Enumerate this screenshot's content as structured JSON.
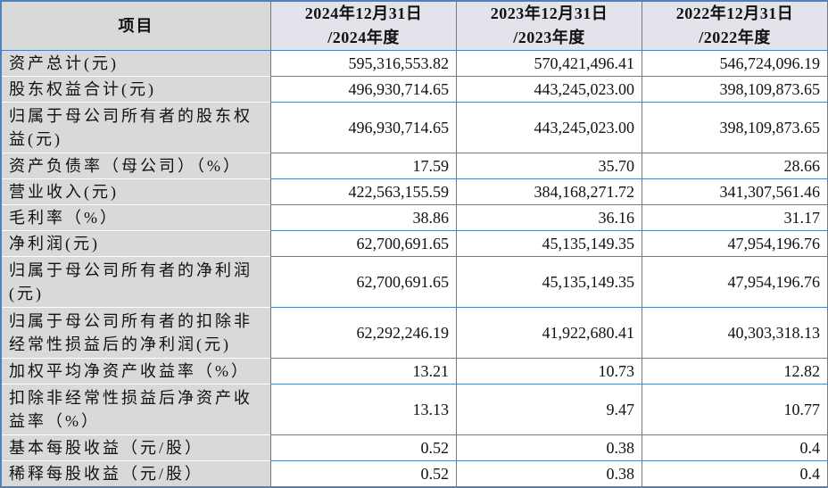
{
  "table": {
    "item_header": "项目",
    "period_headers": [
      {
        "line1": "2024年12月31日",
        "line2": "/2024年度"
      },
      {
        "line1": "2023年12月31日",
        "line2": "/2023年度"
      },
      {
        "line1": "2022年12月31日",
        "line2": "/2022年度"
      }
    ],
    "rows": [
      {
        "item": "资产总计(元)",
        "values": [
          "595,316,553.82",
          "570,421,496.41",
          "546,724,096.19"
        ]
      },
      {
        "item": "股东权益合计(元)",
        "values": [
          "496,930,714.65",
          "443,245,023.00",
          "398,109,873.65"
        ]
      },
      {
        "item": "归属于母公司所有者的股东权益(元)",
        "values": [
          "496,930,714.65",
          "443,245,023.00",
          "398,109,873.65"
        ]
      },
      {
        "item": "资产负债率（母公司）（%）",
        "values": [
          "17.59",
          "35.70",
          "28.66"
        ]
      },
      {
        "item": "营业收入(元)",
        "values": [
          "422,563,155.59",
          "384,168,271.72",
          "341,307,561.46"
        ]
      },
      {
        "item": "毛利率（%）",
        "values": [
          "38.86",
          "36.16",
          "31.17"
        ]
      },
      {
        "item": "净利润(元)",
        "values": [
          "62,700,691.65",
          "45,135,149.35",
          "47,954,196.76"
        ]
      },
      {
        "item": "归属于母公司所有者的净利润(元)",
        "values": [
          "62,700,691.65",
          "45,135,149.35",
          "47,954,196.76"
        ]
      },
      {
        "item": "归属于母公司所有者的扣除非经常性损益后的净利润(元)",
        "values": [
          "62,292,246.19",
          "41,922,680.41",
          "40,303,318.13"
        ]
      },
      {
        "item": "加权平均净资产收益率（%）",
        "values": [
          "13.21",
          "10.73",
          "12.82"
        ]
      },
      {
        "item": "扣除非经常性损益后净资产收益率（%）",
        "values": [
          "13.13",
          "9.47",
          "10.77"
        ]
      },
      {
        "item": "基本每股收益（元/股）",
        "values": [
          "0.52",
          "0.38",
          "0.4"
        ]
      },
      {
        "item": "稀释每股收益（元/股）",
        "values": [
          "0.52",
          "0.38",
          "0.4"
        ]
      }
    ]
  },
  "colors": {
    "border_blue": "#4f81bd",
    "label_column_bg": "#d9d9d9",
    "header_row_bg": "#e3e3eb",
    "data_cell_bg": "#ffffff",
    "text": "#111111"
  }
}
